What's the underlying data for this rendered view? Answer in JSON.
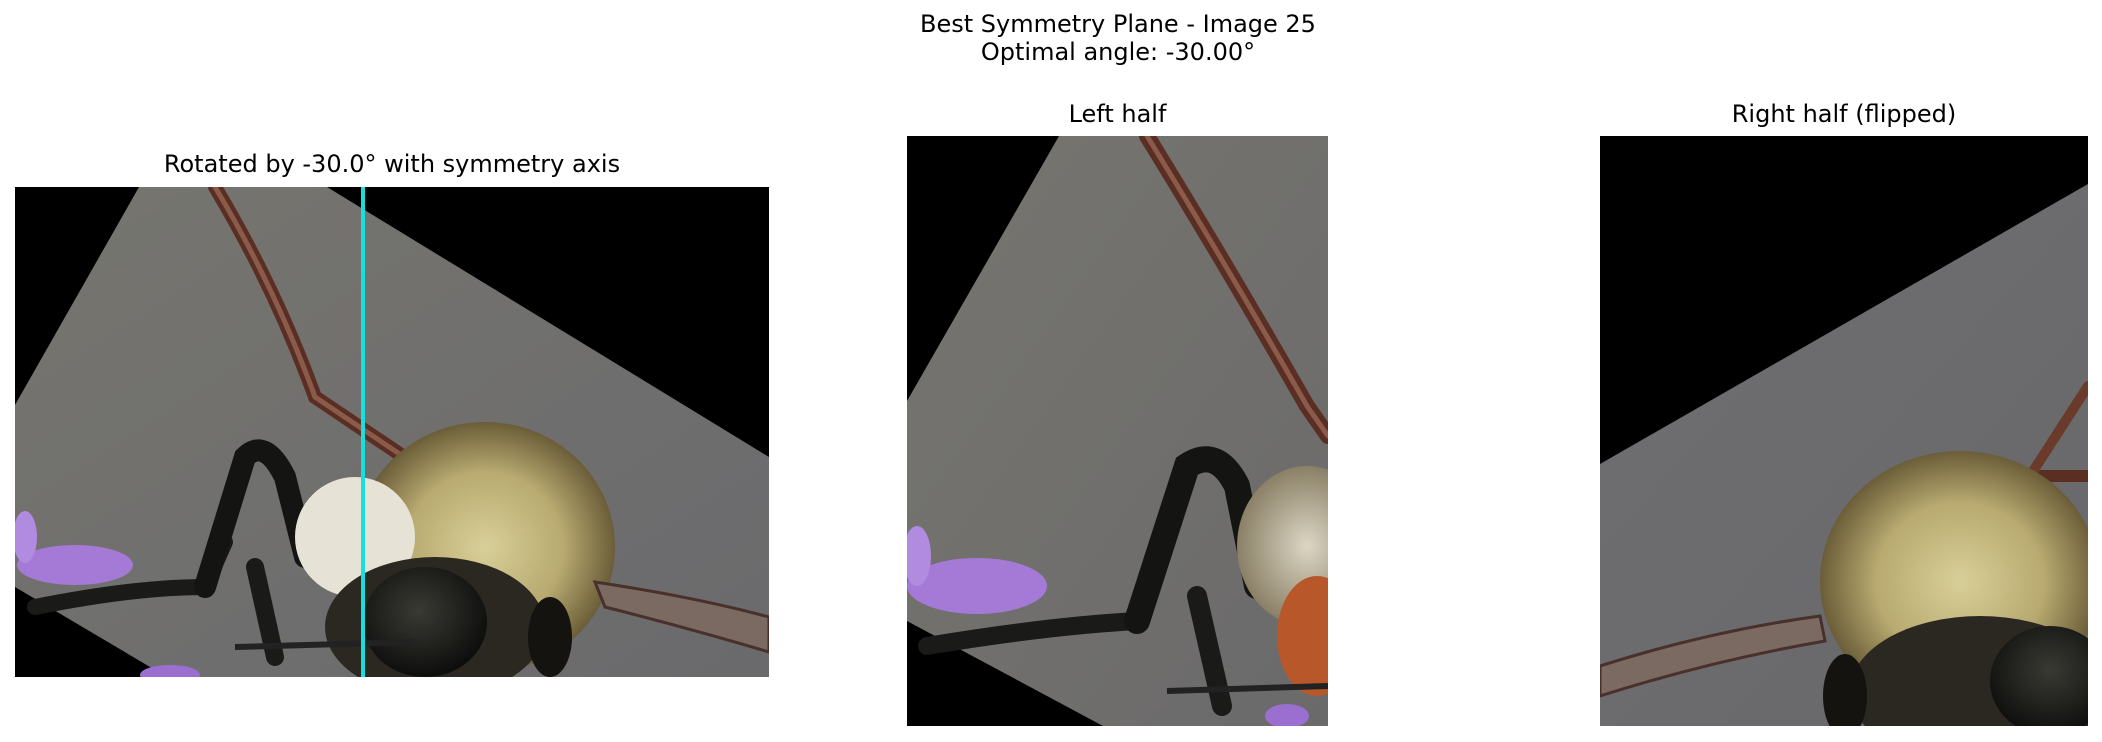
{
  "figure": {
    "title_line1": "Best Symmetry Plane - Image 25",
    "title_line2": "Optimal angle: -30.00°"
  },
  "panels": [
    {
      "title": "Rotated by -30.0° with symmetry axis",
      "content": "rotated bee close-up photo with symmetry axis"
    },
    {
      "title": "Left half",
      "content": "left half of rotated photo"
    },
    {
      "title": "Right half (flipped)",
      "content": "right half of rotated photo, mirrored"
    }
  ],
  "colors": {
    "axis": "#19dede",
    "background_fill": "#000000"
  }
}
